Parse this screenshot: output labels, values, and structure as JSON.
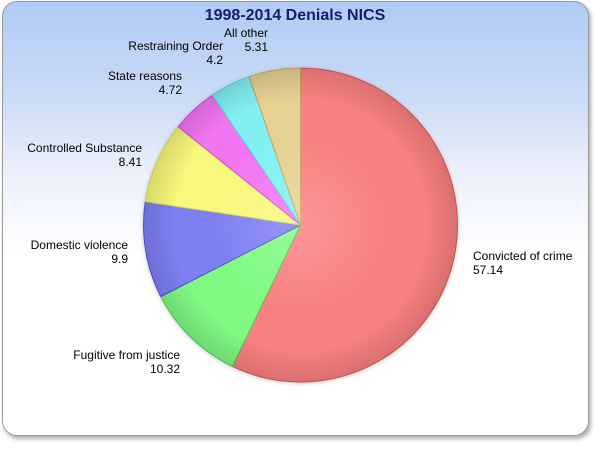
{
  "window": {
    "background_top_color": "#b0cbf4",
    "background_bottom_color": "#ffffff",
    "border_color": "#9a9a9a"
  },
  "chart_data": {
    "type": "pie",
    "title": "1998-2014 Denials NICS",
    "title_color": "#1a1a70",
    "legend": "none",
    "labels_style": "outside, two lines (category name above numeric value)",
    "start_angle_deg": 0,
    "direction": "clockwise",
    "total": 100.0,
    "slices": [
      {
        "label": "Convicted of crime",
        "value": 57.14,
        "display": "57.14",
        "color": "#f98080",
        "stroke": "#e2524f"
      },
      {
        "label": "Fugitive from justice",
        "value": 10.32,
        "display": "10.32",
        "color": "#80fa82",
        "stroke": "#47d447"
      },
      {
        "label": "Domestic violence",
        "value": 9.9,
        "display": "9.9",
        "color": "#7f7ff4",
        "stroke": "#5153e0"
      },
      {
        "label": "Controlled Substance",
        "value": 8.41,
        "display": "8.41",
        "color": "#f8f87c",
        "stroke": "#d8d84e"
      },
      {
        "label": "State reasons",
        "value": 4.72,
        "display": "4.72",
        "color": "#f276f2",
        "stroke": "#d64fd6"
      },
      {
        "label": "Restraining Order",
        "value": 4.2,
        "display": "4.2",
        "color": "#82f0f2",
        "stroke": "#4fd0d8"
      },
      {
        "label": "All other",
        "value": 5.31,
        "display": "5.31",
        "color": "#e5d193",
        "stroke": "#c6a65e"
      }
    ]
  }
}
